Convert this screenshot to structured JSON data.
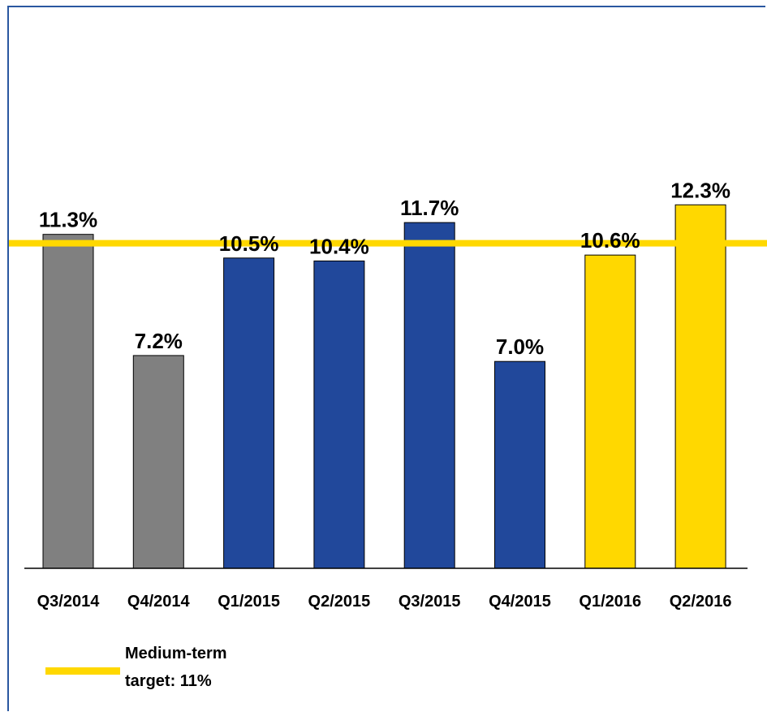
{
  "chart_data": {
    "type": "bar",
    "categories": [
      "Q3/2014",
      "Q4/2014",
      "Q1/2015",
      "Q2/2015",
      "Q3/2015",
      "Q4/2015",
      "Q1/2016",
      "Q2/2016"
    ],
    "values": [
      11.3,
      7.2,
      10.5,
      10.4,
      11.7,
      7.0,
      10.6,
      12.3
    ],
    "value_labels": [
      "11.3%",
      "7.2%",
      "10.5%",
      "10.4%",
      "11.7%",
      "7.0%",
      "10.6%",
      "12.3%"
    ],
    "bar_colors": [
      "#808080",
      "#808080",
      "#21489b",
      "#21489b",
      "#21489b",
      "#21489b",
      "#ffd800",
      "#ffd800"
    ],
    "ylim": [
      0,
      17.5
    ],
    "target_line": {
      "value": 11,
      "color": "#ffd800"
    },
    "grid": false,
    "legend": {
      "position": "bottom-left",
      "label": "Medium-term\ntarget: 11%"
    }
  }
}
